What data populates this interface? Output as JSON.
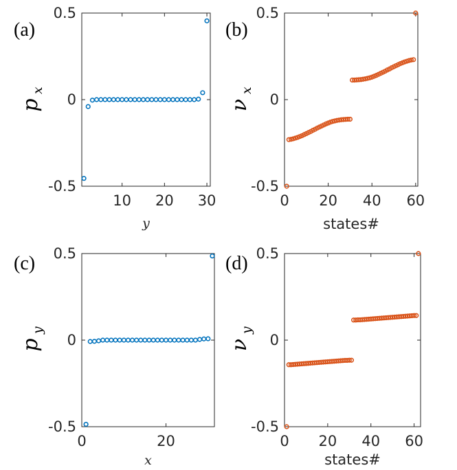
{
  "colors": {
    "blue": "#0072BD",
    "orange": "#D95319",
    "axis": "#262626"
  },
  "chart_data": [
    {
      "id": "a",
      "panel_label": "(a)",
      "type": "scatter",
      "xlabel": "y",
      "ylabel_main": "p",
      "ylabel_sub": "x",
      "xlim": [
        0.5,
        30.8
      ],
      "ylim": [
        -0.5,
        0.5
      ],
      "xticks": [
        10,
        20,
        30
      ],
      "xtick_labels": [
        "10",
        "20",
        "30"
      ],
      "yticks": [
        -0.5,
        0,
        0.5
      ],
      "ytick_labels": [
        "-0.5",
        "0",
        "0.5"
      ],
      "color": "#0072BD",
      "series": [
        {
          "name": "p_x",
          "x": [
            1,
            2,
            3,
            4,
            5,
            6,
            7,
            8,
            9,
            10,
            11,
            12,
            13,
            14,
            15,
            16,
            17,
            18,
            19,
            20,
            21,
            22,
            23,
            24,
            25,
            26,
            27,
            28,
            29,
            30
          ],
          "y": [
            -0.455,
            -0.04,
            -0.003,
            0,
            0,
            0,
            0,
            0,
            0,
            0,
            0,
            0,
            0,
            0,
            0,
            0,
            0,
            0,
            0,
            0,
            0,
            0,
            0,
            0,
            0,
            0,
            0,
            0.003,
            0.04,
            0.455
          ]
        }
      ]
    },
    {
      "id": "b",
      "panel_label": "(b)",
      "type": "scatter",
      "xlabel": "states#",
      "ylabel_main": "ν",
      "ylabel_sub": "x",
      "xlim": [
        0,
        61
      ],
      "ylim": [
        -0.5,
        0.5
      ],
      "xticks": [
        0,
        20,
        40,
        60
      ],
      "xtick_labels": [
        "0",
        "20",
        "40",
        "60"
      ],
      "yticks": [
        -0.5,
        0,
        0.5
      ],
      "ytick_labels": [
        "-0.5",
        "0",
        "0.5"
      ],
      "color": "#D95319",
      "series": [
        {
          "name": "nu_x",
          "x": [
            1,
            2,
            3,
            4,
            5,
            6,
            7,
            8,
            9,
            10,
            11,
            12,
            13,
            14,
            15,
            16,
            17,
            18,
            19,
            20,
            21,
            22,
            23,
            24,
            25,
            26,
            27,
            28,
            29,
            30,
            31,
            32,
            33,
            34,
            35,
            36,
            37,
            38,
            39,
            40,
            41,
            42,
            43,
            44,
            45,
            46,
            47,
            48,
            49,
            50,
            51,
            52,
            53,
            54,
            55,
            56,
            57,
            58,
            59,
            60
          ],
          "y": [
            -0.5,
            -0.231,
            -0.229,
            -0.226,
            -0.222,
            -0.218,
            -0.213,
            -0.208,
            -0.202,
            -0.196,
            -0.19,
            -0.184,
            -0.177,
            -0.171,
            -0.164,
            -0.158,
            -0.152,
            -0.146,
            -0.14,
            -0.135,
            -0.13,
            -0.126,
            -0.123,
            -0.12,
            -0.118,
            -0.116,
            -0.115,
            -0.114,
            -0.113,
            -0.113,
            0.113,
            0.113,
            0.114,
            0.115,
            0.116,
            0.118,
            0.12,
            0.123,
            0.126,
            0.13,
            0.135,
            0.14,
            0.146,
            0.152,
            0.158,
            0.164,
            0.171,
            0.177,
            0.184,
            0.19,
            0.196,
            0.202,
            0.208,
            0.213,
            0.218,
            0.222,
            0.226,
            0.229,
            0.231,
            0.5
          ]
        }
      ]
    },
    {
      "id": "c",
      "panel_label": "(c)",
      "type": "scatter",
      "xlabel": "x",
      "ylabel_main": "p",
      "ylabel_sub": "y",
      "xlim": [
        0,
        31.5
      ],
      "ylim": [
        -0.5,
        0.5
      ],
      "xticks": [
        0,
        20
      ],
      "xtick_labels": [
        "0",
        "20"
      ],
      "yticks": [
        -0.5,
        0,
        0.5
      ],
      "ytick_labels": [
        "-0.5",
        "0",
        "0.5"
      ],
      "color": "#0072BD",
      "series": [
        {
          "name": "p_y",
          "x": [
            1,
            2,
            3,
            4,
            5,
            6,
            7,
            8,
            9,
            10,
            11,
            12,
            13,
            14,
            15,
            16,
            17,
            18,
            19,
            20,
            21,
            22,
            23,
            24,
            25,
            26,
            27,
            28,
            29,
            30,
            31
          ],
          "y": [
            -0.486,
            -0.008,
            -0.007,
            -0.004,
            0,
            0,
            0,
            0,
            0,
            0,
            0,
            0,
            0,
            0,
            0,
            0,
            0,
            0,
            0,
            0,
            0,
            0,
            0,
            0,
            0,
            0,
            0,
            0.004,
            0.007,
            0.008,
            0.486
          ]
        }
      ]
    },
    {
      "id": "d",
      "panel_label": "(d)",
      "type": "scatter",
      "xlabel": "states#",
      "ylabel_main": "ν",
      "ylabel_sub": "y",
      "xlim": [
        0,
        63
      ],
      "ylim": [
        -0.5,
        0.5
      ],
      "xticks": [
        0,
        20,
        40,
        60
      ],
      "xtick_labels": [
        "0",
        "20",
        "40",
        "60"
      ],
      "yticks": [
        -0.5,
        0,
        0.5
      ],
      "ytick_labels": [
        "-0.5",
        "0",
        "0.5"
      ],
      "color": "#D95319",
      "series": [
        {
          "name": "nu_y",
          "x": [
            1,
            2,
            3,
            4,
            5,
            6,
            7,
            8,
            9,
            10,
            11,
            12,
            13,
            14,
            15,
            16,
            17,
            18,
            19,
            20,
            21,
            22,
            23,
            24,
            25,
            26,
            27,
            28,
            29,
            30,
            31,
            32,
            33,
            34,
            35,
            36,
            37,
            38,
            39,
            40,
            41,
            42,
            43,
            44,
            45,
            46,
            47,
            48,
            49,
            50,
            51,
            52,
            53,
            54,
            55,
            56,
            57,
            58,
            59,
            60,
            61,
            62
          ],
          "y": [
            -0.5,
            -0.142,
            -0.142,
            -0.141,
            -0.14,
            -0.139,
            -0.138,
            -0.137,
            -0.136,
            -0.135,
            -0.134,
            -0.133,
            -0.132,
            -0.131,
            -0.13,
            -0.129,
            -0.128,
            -0.127,
            -0.126,
            -0.125,
            -0.124,
            -0.123,
            -0.122,
            -0.121,
            -0.12,
            -0.119,
            -0.118,
            -0.117,
            -0.117,
            -0.116,
            -0.116,
            0.116,
            0.116,
            0.117,
            0.117,
            0.118,
            0.119,
            0.12,
            0.121,
            0.122,
            0.123,
            0.124,
            0.125,
            0.126,
            0.127,
            0.128,
            0.129,
            0.13,
            0.131,
            0.132,
            0.133,
            0.134,
            0.135,
            0.136,
            0.137,
            0.138,
            0.139,
            0.14,
            0.141,
            0.142,
            0.142,
            0.5
          ]
        }
      ]
    }
  ]
}
